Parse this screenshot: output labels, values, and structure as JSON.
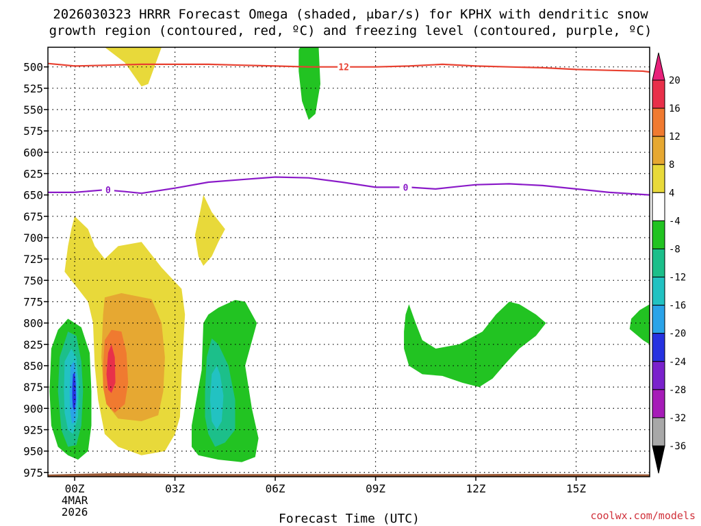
{
  "chart_data": {
    "type": "heatmap",
    "title_line1": "2026030323 HRRR Forecast Omega (shaded, μbar/s) for KPHX with dendritic snow",
    "title_line2": "growth region (contoured, red, ºC) and freezing level (contoured, purple, ºC)",
    "xlabel": "Forecast Time (UTC)",
    "x_range_hours": [
      -0.8,
      17.2
    ],
    "x_ticks": [
      {
        "hour": 0,
        "label": "00Z",
        "sub1": "4MAR",
        "sub2": "2026"
      },
      {
        "hour": 3,
        "label": "03Z"
      },
      {
        "hour": 6,
        "label": "06Z"
      },
      {
        "hour": 9,
        "label": "09Z"
      },
      {
        "hour": 12,
        "label": "12Z"
      },
      {
        "hour": 15,
        "label": "15Z"
      }
    ],
    "y_range_mb": [
      477,
      980
    ],
    "y_ticks": [
      500,
      525,
      550,
      575,
      600,
      625,
      650,
      675,
      700,
      725,
      750,
      775,
      800,
      825,
      850,
      875,
      900,
      925,
      950,
      975
    ],
    "surface_pressure_mb": 977,
    "colorbar": {
      "labels": [
        "20",
        "16",
        "12",
        "8",
        "4",
        "-4",
        "-8",
        "-12",
        "-16",
        "-20",
        "-24",
        "-28",
        "-32",
        "-36"
      ],
      "bins": [
        {
          "color": "#e8304a"
        },
        {
          "color": "#f07a30"
        },
        {
          "color": "#e6a832"
        },
        {
          "color": "#e8d93a"
        },
        {
          "color": "#ffffff"
        },
        {
          "color": "#22c322"
        },
        {
          "color": "#1cbf8a"
        },
        {
          "color": "#22c2c2"
        },
        {
          "color": "#2aa3e8"
        },
        {
          "color": "#2632e0"
        },
        {
          "color": "#7a22cc"
        },
        {
          "color": "#a61cb8"
        },
        {
          "color": "#a8a8a8"
        }
      ],
      "top_arrow_color": "#e8207a",
      "bottom_arrow_color": "#000000"
    },
    "filled_regions": [
      {
        "name": "pos-top-left",
        "color": "#e8d93a",
        "points": [
          [
            0.3,
            477
          ],
          [
            2.6,
            477
          ],
          [
            2.2,
            520
          ],
          [
            2.0,
            523
          ],
          [
            1.5,
            495
          ],
          [
            0.9,
            477
          ]
        ]
      },
      {
        "name": "neg-top-mid",
        "color": "#22c322",
        "points": [
          [
            6.75,
            477
          ],
          [
            7.3,
            477
          ],
          [
            7.35,
            520
          ],
          [
            7.2,
            555
          ],
          [
            7.0,
            562
          ],
          [
            6.8,
            540
          ],
          [
            6.7,
            505
          ],
          [
            6.7,
            480
          ]
        ]
      },
      {
        "name": "pos-big-4",
        "color": "#e8d93a",
        "points": [
          [
            -0.3,
            740
          ],
          [
            -0.2,
            710
          ],
          [
            -0.1,
            690
          ],
          [
            0.0,
            675
          ],
          [
            0.4,
            690
          ],
          [
            0.6,
            710
          ],
          [
            0.9,
            725
          ],
          [
            1.3,
            710
          ],
          [
            2.0,
            705
          ],
          [
            2.6,
            735
          ],
          [
            3.2,
            760
          ],
          [
            3.3,
            790
          ],
          [
            3.2,
            860
          ],
          [
            3.15,
            910
          ],
          [
            3.0,
            930
          ],
          [
            2.7,
            950
          ],
          [
            2.0,
            955
          ],
          [
            1.3,
            945
          ],
          [
            0.9,
            930
          ],
          [
            0.7,
            890
          ],
          [
            0.6,
            850
          ],
          [
            0.55,
            800
          ],
          [
            0.4,
            775
          ],
          [
            0.1,
            760
          ]
        ]
      },
      {
        "name": "pos-big-8",
        "color": "#e6a832",
        "points": [
          [
            0.8,
            840
          ],
          [
            0.85,
            790
          ],
          [
            0.9,
            770
          ],
          [
            1.4,
            765
          ],
          [
            2.3,
            772
          ],
          [
            2.6,
            800
          ],
          [
            2.7,
            840
          ],
          [
            2.65,
            880
          ],
          [
            2.5,
            908
          ],
          [
            2.0,
            915
          ],
          [
            1.3,
            912
          ],
          [
            0.95,
            895
          ],
          [
            0.85,
            870
          ]
        ]
      },
      {
        "name": "pos-big-12",
        "color": "#f07a30",
        "points": [
          [
            0.85,
            850
          ],
          [
            0.9,
            820
          ],
          [
            1.1,
            808
          ],
          [
            1.4,
            810
          ],
          [
            1.55,
            835
          ],
          [
            1.6,
            870
          ],
          [
            1.5,
            895
          ],
          [
            1.2,
            905
          ],
          [
            0.95,
            895
          ],
          [
            0.85,
            875
          ]
        ]
      },
      {
        "name": "pos-big-16",
        "color": "#e8304a",
        "points": [
          [
            0.95,
            860
          ],
          [
            1.0,
            835
          ],
          [
            1.1,
            825
          ],
          [
            1.2,
            840
          ],
          [
            1.22,
            870
          ],
          [
            1.1,
            882
          ],
          [
            1.0,
            878
          ]
        ]
      },
      {
        "name": "pos-small-mid",
        "color": "#e8d93a",
        "points": [
          [
            3.6,
            697
          ],
          [
            3.75,
            670
          ],
          [
            3.85,
            650
          ],
          [
            4.1,
            670
          ],
          [
            4.5,
            690
          ],
          [
            4.3,
            705
          ],
          [
            4.1,
            722
          ],
          [
            3.85,
            733
          ],
          [
            3.7,
            722
          ]
        ]
      },
      {
        "name": "neg-left-4",
        "color": "#22c322",
        "points": [
          [
            -0.75,
            880
          ],
          [
            -0.7,
            830
          ],
          [
            -0.5,
            808
          ],
          [
            -0.2,
            795
          ],
          [
            0.2,
            805
          ],
          [
            0.45,
            835
          ],
          [
            0.5,
            880
          ],
          [
            0.5,
            920
          ],
          [
            0.4,
            950
          ],
          [
            0.1,
            960
          ],
          [
            -0.2,
            955
          ],
          [
            -0.5,
            945
          ],
          [
            -0.7,
            920
          ]
        ]
      },
      {
        "name": "neg-left-8",
        "color": "#1cbf8a",
        "points": [
          [
            -0.5,
            880
          ],
          [
            -0.45,
            840
          ],
          [
            -0.2,
            810
          ],
          [
            0.05,
            815
          ],
          [
            0.2,
            845
          ],
          [
            0.25,
            880
          ],
          [
            0.2,
            920
          ],
          [
            0.05,
            943
          ],
          [
            -0.2,
            945
          ],
          [
            -0.4,
            925
          ]
        ]
      },
      {
        "name": "neg-left-12",
        "color": "#22c2c2",
        "points": [
          [
            -0.32,
            880
          ],
          [
            -0.3,
            845
          ],
          [
            -0.1,
            830
          ],
          [
            0.05,
            840
          ],
          [
            0.12,
            870
          ],
          [
            0.1,
            910
          ],
          [
            -0.05,
            930
          ],
          [
            -0.2,
            925
          ],
          [
            -0.3,
            905
          ]
        ]
      },
      {
        "name": "neg-left-16",
        "color": "#2aa3e8",
        "points": [
          [
            -0.15,
            880
          ],
          [
            -0.12,
            850
          ],
          [
            -0.02,
            845
          ],
          [
            0.05,
            860
          ],
          [
            0.07,
            890
          ],
          [
            0.02,
            915
          ],
          [
            -0.08,
            918
          ],
          [
            -0.14,
            900
          ]
        ]
      },
      {
        "name": "neg-left-20",
        "color": "#2632e0",
        "points": [
          [
            -0.07,
            875
          ],
          [
            -0.05,
            860
          ],
          [
            0.0,
            858
          ],
          [
            0.03,
            870
          ],
          [
            0.04,
            890
          ],
          [
            0.0,
            903
          ],
          [
            -0.05,
            900
          ],
          [
            -0.07,
            888
          ]
        ]
      },
      {
        "name": "neg-mid-4",
        "color": "#22c322",
        "points": [
          [
            3.5,
            920
          ],
          [
            3.8,
            855
          ],
          [
            3.85,
            800
          ],
          [
            4.0,
            790
          ],
          [
            4.3,
            782
          ],
          [
            4.8,
            773
          ],
          [
            5.1,
            775
          ],
          [
            5.45,
            800
          ],
          [
            5.1,
            850
          ],
          [
            5.3,
            900
          ],
          [
            5.5,
            935
          ],
          [
            5.4,
            957
          ],
          [
            5.0,
            963
          ],
          [
            4.3,
            960
          ],
          [
            3.7,
            955
          ],
          [
            3.5,
            945
          ]
        ]
      },
      {
        "name": "neg-mid-8",
        "color": "#1cbf8a",
        "points": [
          [
            3.9,
            880
          ],
          [
            3.95,
            840
          ],
          [
            4.1,
            818
          ],
          [
            4.3,
            825
          ],
          [
            4.6,
            850
          ],
          [
            4.8,
            890
          ],
          [
            4.8,
            925
          ],
          [
            4.5,
            940
          ],
          [
            4.2,
            945
          ],
          [
            4.0,
            930
          ],
          [
            3.9,
            910
          ]
        ]
      },
      {
        "name": "neg-mid-12",
        "color": "#22c2c2",
        "points": [
          [
            4.05,
            890
          ],
          [
            4.1,
            860
          ],
          [
            4.25,
            850
          ],
          [
            4.35,
            860
          ],
          [
            4.45,
            885
          ],
          [
            4.4,
            915
          ],
          [
            4.25,
            925
          ],
          [
            4.1,
            915
          ]
        ]
      },
      {
        "name": "neg-right-4",
        "color": "#22c322",
        "points": [
          [
            9.85,
            810
          ],
          [
            9.9,
            790
          ],
          [
            10.0,
            778
          ],
          [
            10.2,
            800
          ],
          [
            10.4,
            820
          ],
          [
            10.8,
            830
          ],
          [
            11.5,
            825
          ],
          [
            12.2,
            810
          ],
          [
            12.6,
            790
          ],
          [
            13.0,
            775
          ],
          [
            13.3,
            778
          ],
          [
            13.8,
            790
          ],
          [
            14.1,
            800
          ],
          [
            13.8,
            815
          ],
          [
            13.3,
            830
          ],
          [
            12.9,
            847
          ],
          [
            12.5,
            865
          ],
          [
            12.1,
            875
          ],
          [
            11.6,
            870
          ],
          [
            11.0,
            862
          ],
          [
            10.4,
            860
          ],
          [
            10.0,
            850
          ],
          [
            9.85,
            830
          ]
        ]
      },
      {
        "name": "neg-far-right",
        "color": "#22c322",
        "points": [
          [
            17.2,
            778
          ],
          [
            17.2,
            825
          ],
          [
            17.0,
            820
          ],
          [
            16.6,
            807
          ],
          [
            16.65,
            795
          ],
          [
            16.9,
            785
          ]
        ]
      }
    ],
    "contours": [
      {
        "name": "dgz-12C",
        "color": "#e84030",
        "label": "12",
        "label_at": [
          8.05,
          500
        ],
        "points": [
          [
            -0.8,
            496
          ],
          [
            0,
            499
          ],
          [
            1,
            498
          ],
          [
            2,
            497
          ],
          [
            3,
            497
          ],
          [
            4,
            497
          ],
          [
            5,
            498
          ],
          [
            6,
            499
          ],
          [
            7,
            500
          ],
          [
            8,
            500
          ],
          [
            9,
            500
          ],
          [
            10,
            499
          ],
          [
            11,
            497
          ],
          [
            12,
            499
          ],
          [
            13,
            500
          ],
          [
            14,
            501
          ],
          [
            15,
            503
          ],
          [
            16,
            504
          ],
          [
            17,
            505
          ],
          [
            17.2,
            506
          ]
        ]
      },
      {
        "name": "freezing-0C",
        "color": "#8a1ac8",
        "label": "0",
        "label_marks": [
          {
            "at": [
              1.0,
              644
            ],
            "text": "0"
          },
          {
            "at": [
              9.9,
              641
            ],
            "text": "0"
          }
        ],
        "points": [
          [
            -0.8,
            647
          ],
          [
            0,
            647
          ],
          [
            0.9,
            644
          ],
          [
            1.5,
            646
          ],
          [
            2.0,
            648
          ],
          [
            3.0,
            642
          ],
          [
            4.0,
            635
          ],
          [
            5.0,
            632
          ],
          [
            6.0,
            629
          ],
          [
            7.0,
            630
          ],
          [
            8.0,
            635
          ],
          [
            9.0,
            641
          ],
          [
            10.0,
            641
          ],
          [
            10.8,
            643
          ],
          [
            11.5,
            640
          ],
          [
            12.0,
            638
          ],
          [
            13.0,
            637
          ],
          [
            14.0,
            639
          ],
          [
            15.0,
            643
          ],
          [
            16.0,
            647
          ],
          [
            17.2,
            650
          ]
        ]
      }
    ],
    "terrain_color": "#9b5a35",
    "credit": "coolwx.com/models"
  }
}
